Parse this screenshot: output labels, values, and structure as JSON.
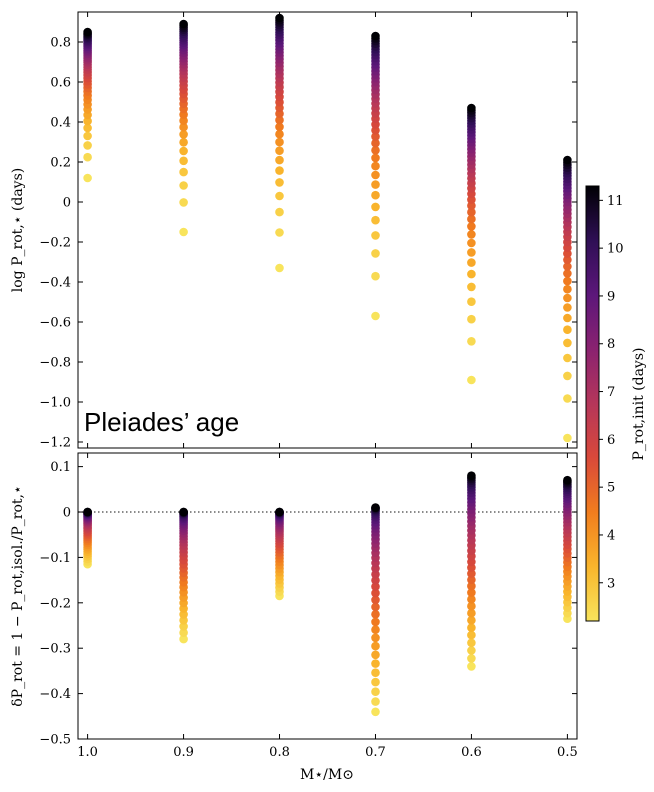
{
  "chart_data": [
    {
      "type": "scatter",
      "panel": "top",
      "annotation": "Pleiades’ age",
      "ylabel": "log P_rot,⋆ (days)",
      "xlim": [
        1.01,
        0.49
      ],
      "ylim": [
        -1.23,
        0.95
      ],
      "yticks": [
        0.8,
        0.6,
        0.4,
        0.2,
        0,
        -0.2,
        -0.4,
        -0.6,
        -0.8,
        -1.0,
        -1.2
      ],
      "ytick_labels": [
        "0.8",
        "0.6",
        "0.4",
        "0.2",
        "0",
        "−0.2",
        "−0.4",
        "−0.6",
        "−0.8",
        "−1.0",
        "−1.2"
      ],
      "grid": false,
      "columns": [
        {
          "mass": 1.0,
          "y_at_pinit_min": 0.12,
          "y_at_pinit_max": 0.85
        },
        {
          "mass": 0.9,
          "y_at_pinit_min": -0.15,
          "y_at_pinit_max": 0.89
        },
        {
          "mass": 0.8,
          "y_at_pinit_min": -0.33,
          "y_at_pinit_max": 0.92
        },
        {
          "mass": 0.7,
          "y_at_pinit_min": -0.57,
          "y_at_pinit_max": 0.83
        },
        {
          "mass": 0.6,
          "y_at_pinit_min": -0.89,
          "y_at_pinit_max": 0.47
        },
        {
          "mass": 0.5,
          "y_at_pinit_min": -1.18,
          "y_at_pinit_max": 0.21
        }
      ]
    },
    {
      "type": "scatter",
      "panel": "bottom",
      "ylabel": "δP_rot = 1 − P_rot,isol./P_rot,⋆",
      "xlabel": "M⋆/M⊙",
      "xlim": [
        1.01,
        0.49
      ],
      "ylim": [
        -0.5,
        0.13
      ],
      "xticks": [
        1.0,
        0.9,
        0.8,
        0.7,
        0.6,
        0.5
      ],
      "xtick_labels": [
        "1.0",
        "0.9",
        "0.8",
        "0.7",
        "0.6",
        "0.5"
      ],
      "yticks": [
        0.1,
        0,
        -0.1,
        -0.2,
        -0.3,
        -0.4,
        -0.5
      ],
      "ytick_labels": [
        "0.1",
        "0",
        "−0.1",
        "−0.2",
        "−0.3",
        "−0.4",
        "−0.5"
      ],
      "reference_line": {
        "y": 0,
        "style": "dotted"
      },
      "grid": false,
      "columns": [
        {
          "mass": 1.0,
          "delta_min": -0.115,
          "delta_at_pinit_max": 0.0
        },
        {
          "mass": 0.9,
          "delta_min": -0.28,
          "delta_at_pinit_max": 0.0
        },
        {
          "mass": 0.8,
          "delta_min": -0.185,
          "delta_at_pinit_max": 0.0
        },
        {
          "mass": 0.7,
          "delta_min": -0.44,
          "delta_at_pinit_max": 0.01
        },
        {
          "mass": 0.6,
          "delta_min": -0.34,
          "delta_at_pinit_max": 0.08
        },
        {
          "mass": 0.5,
          "delta_min": -0.235,
          "delta_at_pinit_max": 0.07
        }
      ]
    }
  ],
  "colorbar": {
    "label": "P_rot,init (days)",
    "range": [
      2.2,
      11.3
    ],
    "ticks": [
      3,
      4,
      5,
      6,
      7,
      8,
      9,
      10,
      11
    ],
    "colormap": "inferno_r",
    "color_stops": [
      "#f8e45c",
      "#f9b52c",
      "#f17d1e",
      "#d9493a",
      "#b5365a",
      "#8a2270",
      "#5c177a",
      "#2f0f55",
      "#000004"
    ]
  }
}
